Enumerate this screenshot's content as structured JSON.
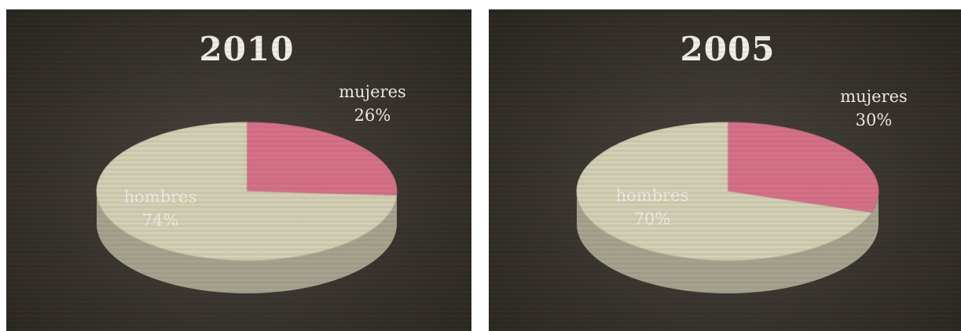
{
  "chart_data": [
    {
      "type": "pie",
      "title": "2010",
      "slices": [
        {
          "label": "mujeres",
          "value": 26,
          "value_label": "26%",
          "color": "#d9708a"
        },
        {
          "label": "hombres",
          "value": 74,
          "value_label": "74%",
          "color": "#d6d2b8"
        }
      ]
    },
    {
      "type": "pie",
      "title": "2005",
      "slices": [
        {
          "label": "mujeres",
          "value": 30,
          "value_label": "30%",
          "color": "#d9708a"
        },
        {
          "label": "hombres",
          "value": 70,
          "value_label": "70%",
          "color": "#d6d2b8"
        }
      ]
    }
  ]
}
